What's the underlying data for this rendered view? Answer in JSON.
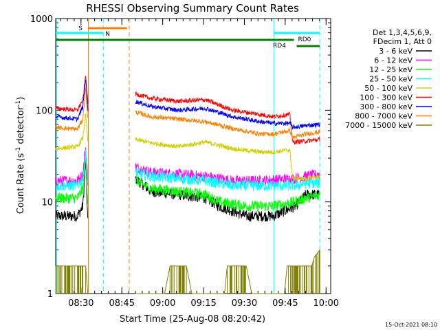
{
  "chart_data": {
    "type": "line",
    "title": "RHESSI Observing Summary Count Rates",
    "xlabel": "Start Time (25-Aug-08 08:20:42)",
    "ylabel_main": "Count Rate (s",
    "ylabel_sup1": "-1",
    "ylabel_mid": " detector",
    "ylabel_sup2": "-1",
    "ylabel_end": ")",
    "footer": "15-Oct-2021 08:10",
    "yscale": "log",
    "ylim": [
      1,
      1000
    ],
    "xlim_minutes": [
      0,
      101
    ],
    "x_ticks": [
      {
        "label": "08:30",
        "t": 9.3
      },
      {
        "label": "08:45",
        "t": 24.3
      },
      {
        "label": "09:00",
        "t": 39.3
      },
      {
        "label": "09:15",
        "t": 54.3
      },
      {
        "label": "09:30",
        "t": 69.3
      },
      {
        "label": "09:45",
        "t": 84.3
      },
      {
        "label": "10:00",
        "t": 99.3
      }
    ],
    "y_ticks": [
      {
        "label": "1",
        "v": 1
      },
      {
        "label": "10",
        "v": 10
      },
      {
        "label": "100",
        "v": 100
      },
      {
        "label": "1000",
        "v": 1000
      }
    ],
    "legend_header": [
      "Det 1,3,4,5,6,9,",
      "FDecim 1, Att 0"
    ],
    "legend_placement": "right",
    "series": [
      {
        "name": "3 - 6 keV",
        "color": "#000000",
        "points": [
          [
            0,
            7
          ],
          [
            8,
            7
          ],
          [
            10,
            9
          ],
          [
            11,
            28
          ],
          [
            11.8,
            6
          ],
          [
            29.4,
            18
          ],
          [
            35,
            13
          ],
          [
            45,
            12
          ],
          [
            55,
            11
          ],
          [
            60,
            9
          ],
          [
            70,
            7
          ],
          [
            80,
            7
          ],
          [
            88,
            9
          ],
          [
            92,
            12
          ],
          [
            97,
            12
          ]
        ]
      },
      {
        "name": "6 - 12 keV",
        "color": "#ff00ff",
        "points": [
          [
            0,
            17
          ],
          [
            8,
            17
          ],
          [
            10,
            20
          ],
          [
            11,
            40
          ],
          [
            11.8,
            17
          ],
          [
            29.4,
            24
          ],
          [
            35,
            21
          ],
          [
            45,
            20
          ],
          [
            55,
            19
          ],
          [
            65,
            17
          ],
          [
            75,
            17
          ],
          [
            88,
            18
          ],
          [
            92,
            19
          ],
          [
            97,
            20
          ]
        ]
      },
      {
        "name": "12 - 25 keV",
        "color": "#00ff00",
        "points": [
          [
            0,
            11
          ],
          [
            8,
            11
          ],
          [
            10,
            14
          ],
          [
            11,
            30
          ],
          [
            11.8,
            10
          ],
          [
            29.4,
            17
          ],
          [
            35,
            14
          ],
          [
            45,
            13
          ],
          [
            55,
            12
          ],
          [
            60,
            10
          ],
          [
            70,
            9
          ],
          [
            80,
            9
          ],
          [
            88,
            10
          ],
          [
            92,
            11
          ],
          [
            97,
            12
          ]
        ]
      },
      {
        "name": "25 - 50 keV",
        "color": "#00ffff",
        "points": [
          [
            0,
            15
          ],
          [
            8,
            15
          ],
          [
            10,
            18
          ],
          [
            11,
            35
          ],
          [
            11.8,
            15
          ],
          [
            29.4,
            21
          ],
          [
            35,
            19
          ],
          [
            45,
            18
          ],
          [
            55,
            17
          ],
          [
            65,
            15
          ],
          [
            75,
            15
          ],
          [
            88,
            15
          ],
          [
            92,
            16
          ],
          [
            97,
            16
          ]
        ]
      },
      {
        "name": "50 - 100 keV",
        "color": "#d0d000",
        "points": [
          [
            0,
            38
          ],
          [
            8,
            40
          ],
          [
            10,
            50
          ],
          [
            11,
            90
          ],
          [
            11.8,
            45
          ],
          [
            29.4,
            48
          ],
          [
            35,
            44
          ],
          [
            45,
            40
          ],
          [
            55,
            45
          ],
          [
            65,
            38
          ],
          [
            75,
            35
          ],
          [
            80,
            35
          ],
          [
            86,
            37
          ],
          [
            87,
            18
          ],
          [
            92,
            18
          ],
          [
            97,
            19
          ]
        ]
      },
      {
        "name": "100 - 300 keV",
        "color": "#ff0000",
        "points": [
          [
            0,
            105
          ],
          [
            8,
            100
          ],
          [
            10,
            130
          ],
          [
            11,
            240
          ],
          [
            11.8,
            120
          ],
          [
            29.4,
            150
          ],
          [
            35,
            135
          ],
          [
            45,
            125
          ],
          [
            55,
            130
          ],
          [
            65,
            100
          ],
          [
            75,
            90
          ],
          [
            80,
            85
          ],
          [
            86,
            90
          ],
          [
            87,
            45
          ],
          [
            92,
            46
          ],
          [
            97,
            48
          ]
        ]
      },
      {
        "name": "300 - 800 keV",
        "color": "#0000ff",
        "points": [
          [
            0,
            85
          ],
          [
            8,
            80
          ],
          [
            10,
            110
          ],
          [
            11,
            230
          ],
          [
            11.8,
            100
          ],
          [
            29.4,
            125
          ],
          [
            35,
            110
          ],
          [
            45,
            100
          ],
          [
            55,
            105
          ],
          [
            65,
            85
          ],
          [
            75,
            75
          ],
          [
            80,
            72
          ],
          [
            86,
            72
          ],
          [
            87,
            65
          ],
          [
            92,
            68
          ],
          [
            97,
            70
          ]
        ]
      },
      {
        "name": "800 - 7000 keV",
        "color": "#ff8000",
        "points": [
          [
            0,
            65
          ],
          [
            8,
            62
          ],
          [
            10,
            80
          ],
          [
            11,
            180
          ],
          [
            11.8,
            80
          ],
          [
            29.4,
            95
          ],
          [
            35,
            85
          ],
          [
            45,
            80
          ],
          [
            55,
            75
          ],
          [
            65,
            63
          ],
          [
            75,
            55
          ],
          [
            80,
            55
          ],
          [
            86,
            60
          ],
          [
            87,
            50
          ],
          [
            92,
            55
          ],
          [
            97,
            58
          ]
        ]
      },
      {
        "name": "7000 - 15000 keV",
        "color": "#808000",
        "points": [
          [
            0,
            2
          ],
          [
            8,
            2
          ],
          [
            11,
            2
          ],
          [
            11.8,
            1
          ],
          [
            29.4,
            1
          ],
          [
            40,
            1
          ],
          [
            42,
            2
          ],
          [
            48,
            2
          ],
          [
            50,
            1
          ],
          [
            62,
            1
          ],
          [
            63,
            2
          ],
          [
            70,
            2
          ],
          [
            72,
            1
          ],
          [
            84,
            1
          ],
          [
            85,
            2
          ],
          [
            94,
            2
          ],
          [
            95,
            2.5
          ],
          [
            97,
            3
          ]
        ]
      }
    ],
    "flags": [
      {
        "name": "S",
        "color": "#ff8000",
        "t0": 12,
        "t1": 26.2,
        "level_px": 41,
        "label_t": 8.4,
        "label_px": 44
      },
      {
        "name": "N",
        "color": "#00ffff",
        "t0": 0,
        "t1": 17.5,
        "level_px": 48,
        "label_t": 18.2,
        "label_px": 52
      },
      {
        "name": "RD0",
        "color": "#00ffff",
        "t0": 80.2,
        "t1": 97,
        "level_px": 48,
        "label_t": 89,
        "label_px": 60
      },
      {
        "name": "RD4",
        "color": "#008000",
        "t0": 0,
        "t1": 87.5,
        "level_px": 58,
        "label_t": 79.8,
        "label_px": 69
      },
      {
        "name": "RD4b",
        "color": "#008000",
        "t0": 88.5,
        "t1": 97,
        "level_px": 67,
        "label_t": null,
        "label_px": null
      }
    ],
    "vlines": [
      {
        "t": 12,
        "color": "#ff8000",
        "dash": false
      },
      {
        "t": 17.5,
        "color": "#00ffff",
        "dash": true
      },
      {
        "t": 27,
        "color": "#ff8000",
        "dash": true
      },
      {
        "t": 80.2,
        "color": "#00ffff",
        "dash": false
      },
      {
        "t": 97,
        "color": "#00ffff",
        "dash": true
      },
      {
        "t": 0.3,
        "color": "#00ffff",
        "dash": false
      }
    ]
  }
}
